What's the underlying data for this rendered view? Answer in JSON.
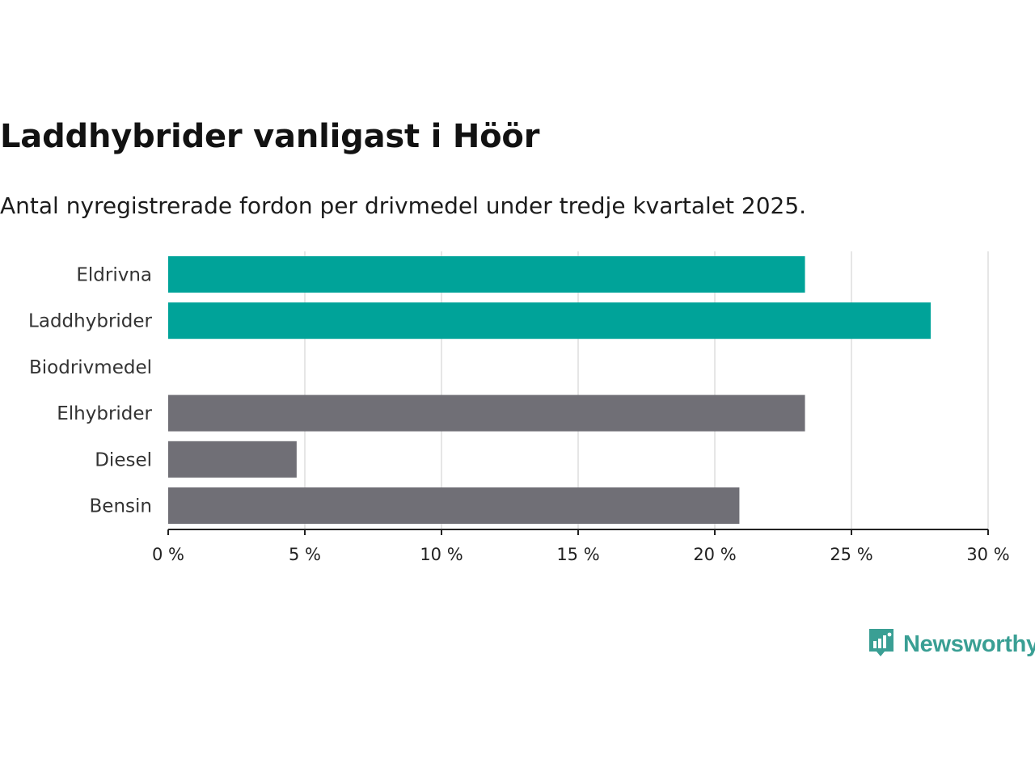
{
  "chart_data": {
    "type": "bar",
    "orientation": "horizontal",
    "title": "Laddhybrider vanligast i Höör",
    "subtitle": "Antal nyregistrerade fordon per drivmedel under tredje kvartalet 2025.",
    "categories": [
      "Eldrivna",
      "Laddhybrider",
      "Biodrivmedel",
      "Elhybrider",
      "Diesel",
      "Bensin"
    ],
    "values": [
      23.3,
      27.9,
      0,
      23.3,
      4.7,
      20.9
    ],
    "unit": "%",
    "bar_colors": [
      "#00a399",
      "#00a399",
      "#00a399",
      "#706f76",
      "#706f76",
      "#706f76"
    ],
    "xlim": [
      0,
      30
    ],
    "x_ticks": [
      0,
      5,
      10,
      15,
      20,
      25,
      30
    ],
    "x_tick_labels": [
      "0 %",
      "5 %",
      "10 %",
      "15 %",
      "20 %",
      "25 %",
      "30 %"
    ],
    "xlabel": "",
    "ylabel": "",
    "grid": true
  },
  "branding": {
    "logo_text": "Newsworthy",
    "logo_color": "#3a9f94"
  }
}
